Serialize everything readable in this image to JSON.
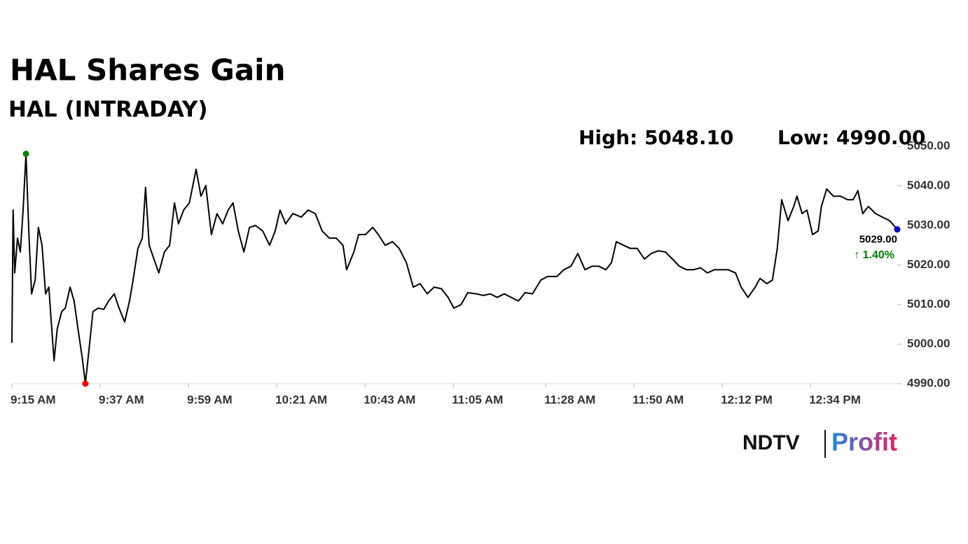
{
  "chart_data": {
    "type": "line",
    "title": "HAL Shares Gain",
    "subtitle": "HAL (INTRADAY)",
    "high_label": "High: 5048.10",
    "low_label": "Low: 4990.00",
    "last_label": "5029.00",
    "change_label": "↑ 1.40%",
    "brand": {
      "left": "NDTV",
      "right": "Profit"
    },
    "xlim": [
      0,
      220.6
    ],
    "xticks": [
      {
        "value": 0,
        "label": "9:15 AM"
      },
      {
        "value": 22,
        "label": "9:37 AM"
      },
      {
        "value": 44,
        "label": "9:59 AM"
      },
      {
        "value": 66,
        "label": "10:21 AM"
      },
      {
        "value": 88,
        "label": "10:43 AM"
      },
      {
        "value": 110,
        "label": "11:05 AM"
      },
      {
        "value": 133,
        "label": "11:28 AM"
      },
      {
        "value": 155,
        "label": "11:50 AM"
      },
      {
        "value": 177,
        "label": "12:12 PM"
      },
      {
        "value": 199,
        "label": "12:34 PM"
      }
    ],
    "ylim": [
      4990,
      5050
    ],
    "yticks": [
      {
        "value": 4990,
        "label": "4990.00"
      },
      {
        "value": 5000,
        "label": "5000.00"
      },
      {
        "value": 5010,
        "label": "5010.00"
      },
      {
        "value": 5020,
        "label": "5020.00"
      },
      {
        "value": 5030,
        "label": "5030.00"
      },
      {
        "value": 5040,
        "label": "5040.00"
      },
      {
        "value": 5050,
        "label": "5050.00"
      }
    ],
    "series": [
      {
        "name": "HAL",
        "color": "#000000",
        "high_color": "#008000",
        "low_color": "#ff0000",
        "last_color": "#0000cc",
        "change_color": "#008000",
        "x": [
          0,
          0.3,
          0.7,
          1.4,
          2.1,
          2.8,
          3.5,
          4.2,
          4.9,
          5.8,
          6.6,
          7.5,
          8.4,
          9.2,
          9.8,
          10.5,
          11.3,
          12.4,
          13.3,
          14.5,
          15.5,
          16.6,
          17.5,
          18.3,
          19.2,
          20.2,
          21.5,
          22.9,
          24.1,
          25.5,
          26.7,
          28.1,
          29.3,
          30.2,
          31.4,
          32.5,
          33.3,
          34.2,
          35.4,
          36.6,
          38,
          39.3,
          40.5,
          41.5,
          42.8,
          44.2,
          45.9,
          47.1,
          48.3,
          49.7,
          51.1,
          52.5,
          53.9,
          55.1,
          56.4,
          57.8,
          59.2,
          60.7,
          62.5,
          64.2,
          65.6,
          66.8,
          68.2,
          70,
          72.1,
          73.8,
          75.6,
          77.3,
          79.1,
          80.8,
          82.5,
          83.4,
          85.2,
          86.4,
          88.1,
          89.9,
          91.3,
          93,
          94.8,
          96.5,
          98.3,
          100,
          101.7,
          103.5,
          105.2,
          107,
          108.7,
          110.1,
          111.9,
          113.6,
          115.7,
          117.5,
          119.2,
          120.9,
          122.7,
          124.4,
          126.2,
          127.9,
          129.7,
          131.8,
          133.5,
          135.8,
          137.5,
          139.3,
          141,
          142.8,
          144.5,
          146.2,
          148,
          149.4,
          150.6,
          152.4,
          154.1,
          155.8,
          157.6,
          159.3,
          161.1,
          162.8,
          164.6,
          166.3,
          168.1,
          169.8,
          171.6,
          173.3,
          175,
          176.8,
          178.5,
          180.3,
          181.7,
          183.4,
          185.2,
          186.4,
          188.1,
          189.5,
          190.7,
          191.8,
          193.4,
          194.8,
          195.6,
          196.9,
          198.1,
          199.5,
          200.9,
          201.7,
          203,
          204.7,
          206.5,
          208.2,
          209.6,
          210.8,
          212,
          213.4,
          215.2,
          216.9,
          218.7,
          220.6
        ],
        "values": [
          5000.3,
          5033.9,
          5018,
          5026.8,
          5023.3,
          5033.9,
          5048.1,
          5028.6,
          5012.7,
          5016.2,
          5029.5,
          5025,
          5012.7,
          5014.4,
          5005.6,
          4995.8,
          5003.8,
          5008.2,
          5009.1,
          5014.4,
          5010.9,
          5002.9,
          4996.7,
          4990,
          4998.5,
          5008.2,
          5009.1,
          5008.8,
          5010.9,
          5012.7,
          5009.1,
          5005.6,
          5010.9,
          5016.2,
          5024.2,
          5026.8,
          5039.6,
          5025,
          5021.5,
          5018,
          5023.3,
          5025,
          5035.7,
          5030.4,
          5033.9,
          5035.7,
          5044.2,
          5037.4,
          5040.1,
          5027.7,
          5033,
          5030.4,
          5033.9,
          5035.7,
          5028.6,
          5023.3,
          5029.5,
          5030,
          5028.6,
          5025,
          5028.6,
          5033.9,
          5030.4,
          5033,
          5032.1,
          5033.9,
          5033,
          5028.6,
          5026.8,
          5026.8,
          5025,
          5018.8,
          5023.3,
          5027.7,
          5027.7,
          5029.5,
          5027.7,
          5025,
          5025.9,
          5024.2,
          5020.6,
          5014.4,
          5015.3,
          5012.7,
          5014.4,
          5014,
          5011.8,
          5009.1,
          5010,
          5013,
          5012.7,
          5012.3,
          5012.7,
          5011.8,
          5012.7,
          5011.8,
          5010.9,
          5013,
          5012.7,
          5016.2,
          5017.1,
          5017.1,
          5018.8,
          5019.7,
          5022.9,
          5018.8,
          5019.7,
          5019.7,
          5018.8,
          5020.6,
          5025.9,
          5025,
          5024.2,
          5024.2,
          5021.5,
          5022.9,
          5023.6,
          5023.3,
          5021.5,
          5019.7,
          5018.8,
          5018.8,
          5019.3,
          5018,
          5018.8,
          5018.8,
          5018.8,
          5018,
          5014.4,
          5011.8,
          5014.4,
          5016.6,
          5015.3,
          5016.2,
          5024.2,
          5036.5,
          5031.2,
          5034.8,
          5037.4,
          5033,
          5033.9,
          5027.7,
          5028.6,
          5034.8,
          5039.2,
          5037.4,
          5037.4,
          5036.5,
          5036.5,
          5038.8,
          5033,
          5034.8,
          5033,
          5032.1,
          5031.2,
          5029
        ]
      }
    ]
  }
}
